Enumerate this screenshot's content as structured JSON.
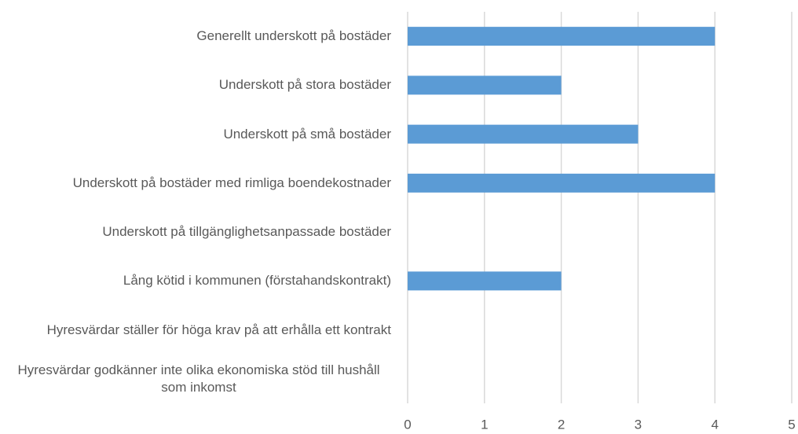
{
  "chart_data": {
    "type": "bar",
    "orientation": "horizontal",
    "categories": [
      "Generellt underskott på bostäder",
      "Underskott på stora bostäder",
      "Underskott på små bostäder",
      "Underskott på bostäder med rimliga boendekostnader",
      "Underskott på tillgänglighetsanpassade bostäder",
      "Lång kötid i kommunen (förstahandskontrakt)",
      "Hyresvärdar ställer för höga krav på att erhålla ett kontrakt",
      "Hyresvärdar godkänner inte olika ekonomiska stöd till hushåll som inkomst"
    ],
    "values": [
      4,
      2,
      3,
      4,
      0,
      2,
      0,
      0
    ],
    "color": "#5b9bd5",
    "xlim": [
      0,
      5
    ],
    "xticks": [
      0,
      1,
      2,
      3,
      4,
      5
    ],
    "grid": true
  }
}
